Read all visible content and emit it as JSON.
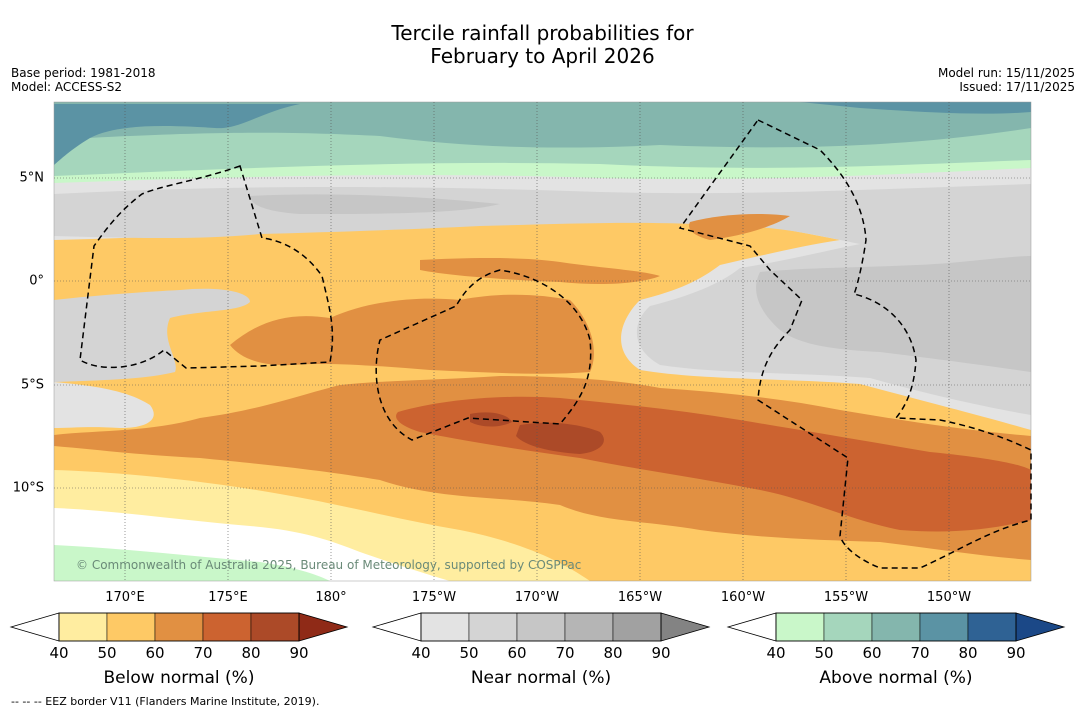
{
  "title": {
    "line1": "Tercile rainfall probabilities for",
    "line2": "February to April 2026"
  },
  "meta": {
    "base_period": "Base period: 1981-2018",
    "model": "Model: ACCESS-S2",
    "model_run": "Model run: 15/11/2025",
    "issued": "Issued: 17/11/2025"
  },
  "map": {
    "lat_labels": [
      "5°N",
      "0°",
      "5°S",
      "10°S"
    ],
    "lon_labels": [
      "170°E",
      "175°E",
      "180°",
      "175°W",
      "170°W",
      "165°W",
      "160°W",
      "155°W",
      "150°W"
    ],
    "copyright": "© Commonwealth of Australia 2025, Bureau of Meteorology, supported by COSPPac",
    "colors": {
      "below": [
        "#ffffff",
        "#ffeda0",
        "#fec965",
        "#e19042",
        "#cc6330",
        "#ac4a28",
        "#8f2a17"
      ],
      "near": [
        "#ffffff",
        "#e3e3e3",
        "#d4d4d4",
        "#c6c6c6",
        "#b5b5b5",
        "#a1a1a1",
        "#838383"
      ],
      "above": [
        "#ffffff",
        "#c9f7c9",
        "#a5d6bc",
        "#84b6ad",
        "#5b93a4",
        "#2f6294",
        "#1b4887"
      ]
    }
  },
  "colorbars": [
    {
      "title": "Below normal (%)",
      "ticks": [
        "40",
        "50",
        "60",
        "70",
        "80",
        "90"
      ]
    },
    {
      "title": "Near normal (%)",
      "ticks": [
        "40",
        "50",
        "60",
        "70",
        "80",
        "90"
      ]
    },
    {
      "title": "Above normal (%)",
      "ticks": [
        "40",
        "50",
        "60",
        "70",
        "80",
        "90"
      ]
    }
  ],
  "footer": "--  --  -- EEZ border V11 (Flanders Marine Institute, 2019)."
}
